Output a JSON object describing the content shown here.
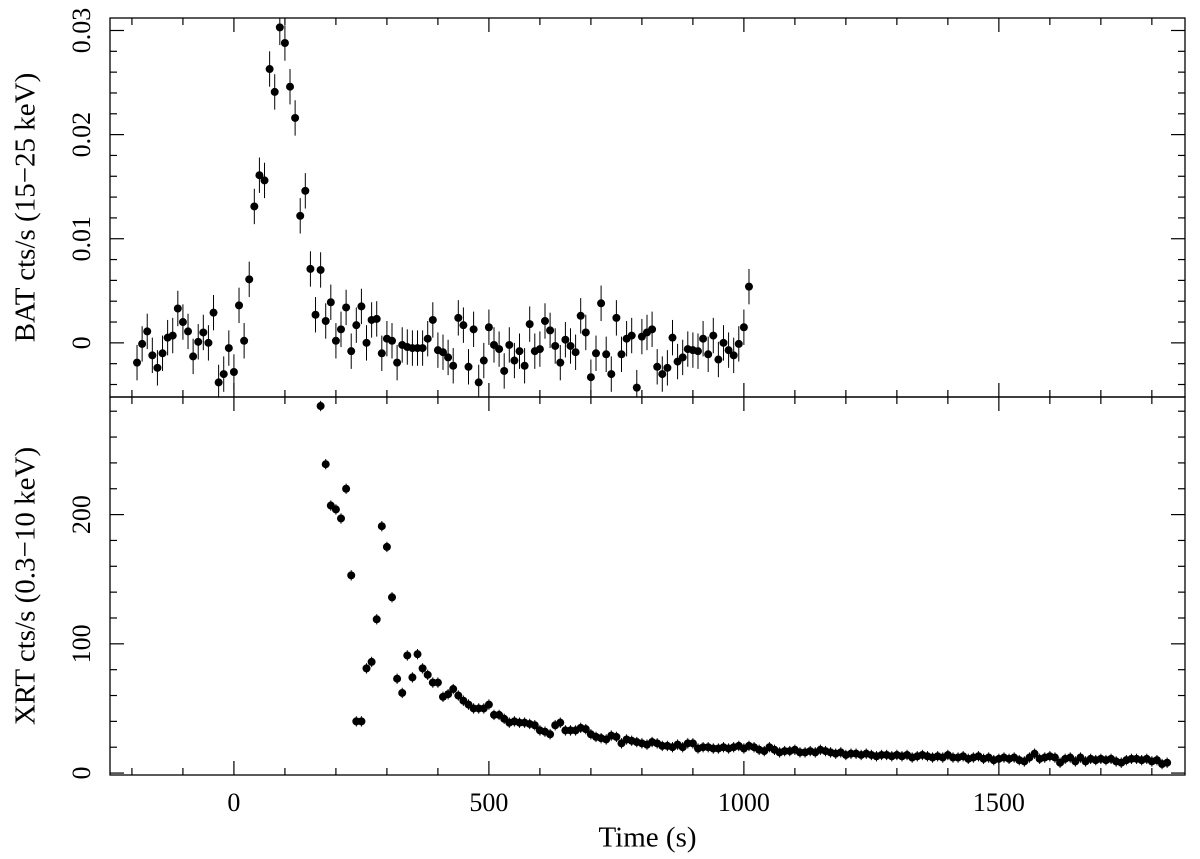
{
  "chart_data": [
    {
      "type": "scatter",
      "y_label": "BAT cts/s (15−25 keV)",
      "xlim": [
        -243,
        1865
      ],
      "xticks": [
        0,
        500,
        1000,
        1500
      ],
      "xtick_labels": false,
      "xminor_ticks": [
        -200,
        -100,
        100,
        200,
        300,
        400,
        600,
        700,
        800,
        900,
        1100,
        1200,
        1300,
        1400,
        1600,
        1700,
        1800
      ],
      "ylim": [
        -0.0052,
        0.0312
      ],
      "yticks": [
        0,
        0.01,
        0.02,
        0.03
      ],
      "yminor_ticks": [
        -0.004,
        -0.002,
        0.002,
        0.004,
        0.006,
        0.008,
        0.012,
        0.014,
        0.016,
        0.018,
        0.022,
        0.024,
        0.026,
        0.028
      ],
      "yerr": 0.0017,
      "color": "#000000",
      "x": [
        -190,
        -180,
        -170,
        -160,
        -150,
        -140,
        -130,
        -120,
        -110,
        -100,
        -90,
        -80,
        -70,
        -60,
        -50,
        -40,
        -30,
        -20,
        -10,
        0,
        10,
        20,
        30,
        40,
        50,
        60,
        70,
        80,
        90,
        100,
        110,
        120,
        130,
        140,
        150,
        160,
        170,
        180,
        190,
        200,
        210,
        220,
        230,
        240,
        250,
        260,
        270,
        280,
        290,
        300,
        310,
        320,
        330,
        340,
        350,
        360,
        370,
        380,
        390,
        400,
        410,
        420,
        430,
        440,
        450,
        460,
        470,
        480,
        490,
        500,
        510,
        520,
        530,
        540,
        550,
        560,
        570,
        580,
        590,
        600,
        610,
        620,
        630,
        640,
        650,
        660,
        670,
        680,
        690,
        700,
        710,
        720,
        730,
        740,
        750,
        760,
        770,
        780,
        790,
        800,
        810,
        820,
        830,
        840,
        850,
        860,
        870,
        880,
        890,
        900,
        910,
        920,
        930,
        940,
        950,
        960,
        970,
        980,
        990,
        1000,
        1010
      ],
      "values": [
        -0.0019,
        -0.0001,
        0.0011,
        -0.0012,
        -0.0024,
        -0.001,
        0.0005,
        0.0007,
        0.0033,
        0.002,
        0.0011,
        -0.0013,
        0.0001,
        0.001,
        0,
        0.0029,
        -0.0038,
        -0.003,
        -0.0005,
        -0.0028,
        0.0036,
        0.0002,
        0.0061,
        0.0131,
        0.0161,
        0.0156,
        0.0263,
        0.0241,
        0.0303,
        0.0288,
        0.0246,
        0.0216,
        0.0122,
        0.0146,
        0.0071,
        0.0027,
        0.007,
        0.0021,
        0.0039,
        0.0002,
        0.0013,
        0.0034,
        -0.0008,
        0.0017,
        0.0035,
        0,
        0.0022,
        0.0023,
        -0.001,
        0.0004,
        0.0002,
        -0.0019,
        -0.0002,
        -0.0004,
        -0.0005,
        -0.0005,
        -0.0005,
        0.0004,
        0.0022,
        -0.0007,
        -0.0009,
        -0.0014,
        -0.0022,
        0.0024,
        0.0017,
        -0.0023,
        0.0013,
        -0.0038,
        -0.0017,
        0.0015,
        -0.0002,
        -0.0006,
        -0.0027,
        -0.0002,
        -0.0017,
        -0.0008,
        -0.0022,
        0.0018,
        -0.0008,
        -0.0006,
        0.0021,
        0.0012,
        -0.0003,
        -0.0019,
        0.0003,
        -0.0003,
        -0.0009,
        0.0026,
        0.001,
        -0.0033,
        -0.001,
        0.0038,
        -0.0011,
        -0.003,
        0.0024,
        -0.0011,
        0.0004,
        0.0007,
        -0.0043,
        0.0006,
        0.001,
        0.0013,
        -0.0023,
        -0.003,
        -0.0024,
        0.0005,
        -0.0018,
        -0.0014,
        -0.0006,
        -0.0007,
        -0.0008,
        0.0004,
        -0.0011,
        0.0007,
        -0.0016,
        0,
        -0.0007,
        -0.0012,
        -0.0001,
        0.0015,
        0.0054
      ]
    },
    {
      "type": "scatter",
      "y_label": "XRT cts/s (0.3−10 keV)",
      "x_label": "Time (s)",
      "xlim": [
        -243,
        1865
      ],
      "xticks": [
        0,
        500,
        1000,
        1500
      ],
      "xtick_labels": true,
      "xminor_ticks": [
        -200,
        -100,
        100,
        200,
        300,
        400,
        600,
        700,
        800,
        900,
        1100,
        1200,
        1300,
        1400,
        1600,
        1700,
        1800
      ],
      "ylim": [
        -1.5,
        291
      ],
      "yticks": [
        0,
        100,
        200
      ],
      "yminor_ticks": [
        20,
        40,
        60,
        80,
        120,
        140,
        160,
        180,
        220,
        240,
        260,
        280
      ],
      "yerr": 4,
      "color": "#000000",
      "x": [
        170,
        180,
        190,
        200,
        210,
        220,
        230,
        240,
        250,
        260,
        270,
        280,
        290,
        300,
        310,
        320,
        330,
        340,
        350,
        360,
        370,
        380,
        390,
        400,
        410,
        420,
        430,
        440,
        450,
        460,
        470,
        480,
        490,
        500,
        510,
        520,
        530,
        540,
        550,
        560,
        570,
        580,
        590,
        600,
        610,
        620,
        630,
        640,
        650,
        660,
        670,
        680,
        690,
        700,
        710,
        720,
        730,
        740,
        750,
        760,
        770,
        780,
        790,
        800,
        810,
        820,
        830,
        840,
        850,
        860,
        870,
        880,
        890,
        900,
        910,
        920,
        930,
        940,
        950,
        960,
        970,
        980,
        990,
        1000,
        1010,
        1020,
        1030,
        1040,
        1050,
        1060,
        1070,
        1080,
        1090,
        1100,
        1110,
        1120,
        1130,
        1140,
        1150,
        1160,
        1170,
        1180,
        1190,
        1200,
        1210,
        1220,
        1230,
        1240,
        1250,
        1260,
        1270,
        1280,
        1290,
        1300,
        1310,
        1320,
        1330,
        1340,
        1350,
        1360,
        1370,
        1380,
        1390,
        1400,
        1410,
        1420,
        1430,
        1440,
        1450,
        1460,
        1470,
        1480,
        1490,
        1500,
        1510,
        1520,
        1530,
        1540,
        1550,
        1560,
        1570,
        1580,
        1590,
        1600,
        1610,
        1620,
        1630,
        1640,
        1650,
        1660,
        1670,
        1680,
        1690,
        1700,
        1710,
        1720,
        1730,
        1740,
        1750,
        1760,
        1770,
        1780,
        1790,
        1800,
        1810,
        1820,
        1830
      ],
      "values": [
        284,
        239,
        207,
        204,
        197,
        220,
        153,
        40,
        40,
        81,
        86,
        119,
        191,
        175,
        136,
        73,
        62,
        91,
        74,
        92,
        81,
        76,
        70,
        70,
        59,
        61,
        65,
        60,
        56,
        53,
        50,
        50,
        50,
        53,
        45,
        45,
        42,
        39,
        40,
        39,
        39,
        38,
        37,
        33,
        32,
        30,
        37,
        39,
        33,
        33,
        33,
        35,
        34,
        30,
        28,
        27,
        26,
        29,
        28,
        23,
        26,
        25,
        24,
        23,
        22,
        24,
        23,
        21,
        21,
        20,
        22,
        20,
        23,
        23,
        19,
        20,
        20,
        19,
        19,
        20,
        19,
        20,
        21,
        19,
        21,
        20,
        18,
        17,
        20,
        18,
        16,
        17,
        17,
        18,
        16,
        16,
        17,
        16,
        18,
        17,
        16,
        15,
        16,
        14,
        15,
        15,
        14,
        15,
        14,
        13,
        14,
        14,
        13,
        14,
        13,
        14,
        12,
        13,
        14,
        13,
        12,
        13,
        12,
        14,
        12,
        12,
        13,
        11,
        12,
        13,
        11,
        12,
        10,
        11,
        12,
        11,
        12,
        10,
        9,
        12,
        15,
        11,
        12,
        13,
        12,
        8,
        11,
        12,
        9,
        12,
        9,
        11,
        10,
        11,
        10,
        11,
        9,
        8,
        10,
        11,
        11,
        10,
        11,
        9,
        10,
        7,
        8
      ]
    }
  ]
}
